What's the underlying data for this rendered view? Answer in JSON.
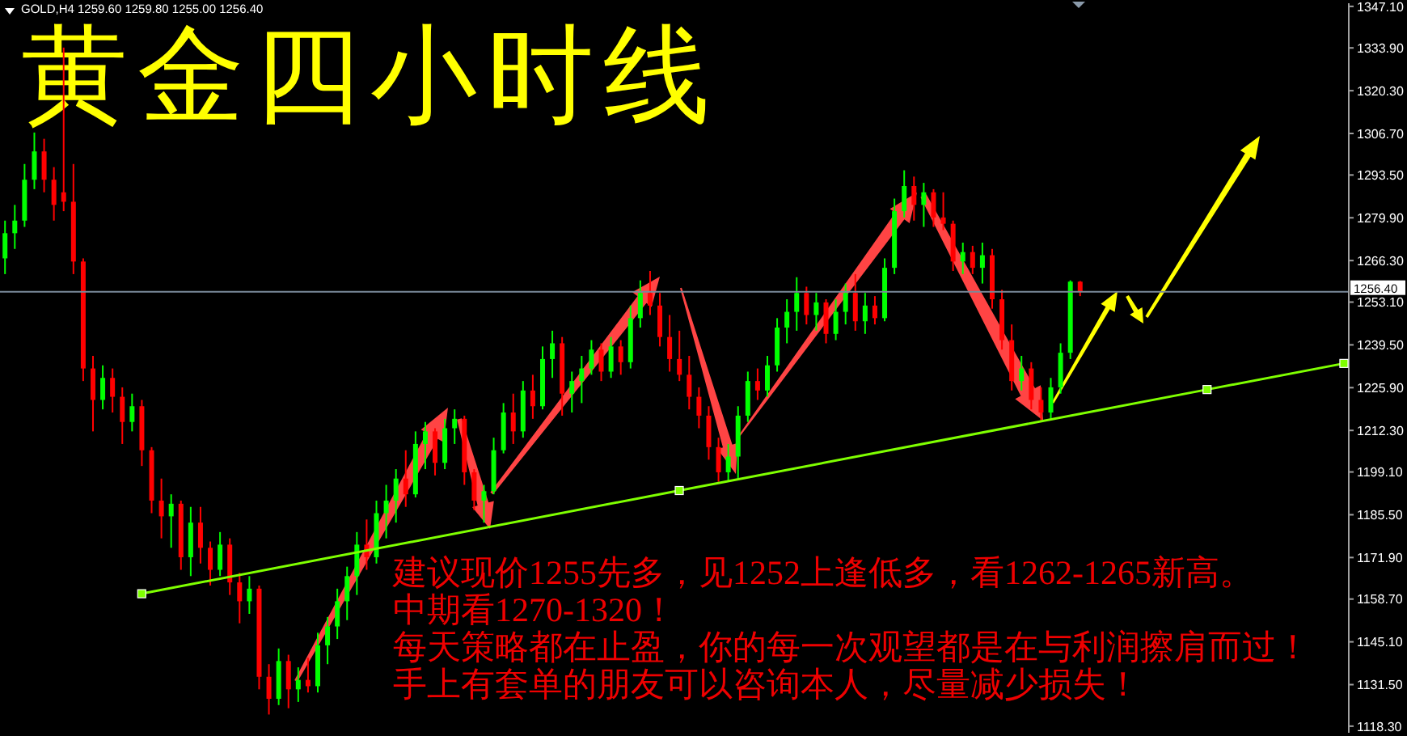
{
  "chart_data": {
    "type": "candlestick",
    "title": "黄金四小时线",
    "subtitle": "GOLD,H4 1259.60 1259.80 1255.00 1256.40",
    "annotations": [
      "建议现价1255先多，见1252上逢低多，看1262-1265新高。",
      "中期看1270-1320！",
      "每天策略都在止盈，你的每一次观望都是在与利润擦肩而过！",
      "手上有套单的朋友可以咨询本人，尽量减少损失！"
    ],
    "categories": [
      null,
      null,
      null,
      null,
      null,
      null,
      null,
      null,
      null,
      null,
      null,
      null,
      null,
      null,
      null,
      null,
      null,
      null,
      null,
      null,
      null,
      null,
      null,
      null,
      null,
      null,
      null,
      null,
      null,
      null,
      null,
      null,
      null,
      null,
      null,
      null,
      null,
      null,
      null,
      null,
      null,
      null,
      null,
      null,
      null,
      null,
      null,
      null,
      null,
      null,
      null,
      null,
      null,
      null,
      null,
      null,
      null,
      null,
      null,
      null,
      null,
      null,
      null,
      null,
      null,
      null,
      null,
      null,
      null,
      null,
      null,
      null,
      null,
      null,
      null,
      null,
      null,
      null,
      null,
      null,
      null,
      null,
      null,
      null,
      null,
      null,
      null,
      null,
      null,
      null,
      null,
      null,
      null,
      null,
      null,
      null,
      null,
      null,
      null,
      null,
      null,
      null,
      null,
      null,
      null,
      null,
      null,
      null,
      null,
      null,
      null,
      null,
      null,
      null,
      null,
      null,
      null,
      null,
      null,
      null,
      null,
      null,
      null,
      null,
      null,
      null,
      null,
      null,
      null,
      null,
      null,
      null,
      null,
      null,
      null,
      null,
      null,
      null
    ],
    "ohlc": [
      [
        1267,
        1279,
        1262,
        1275
      ],
      [
        1275,
        1284,
        1270,
        1279
      ],
      [
        1279,
        1297,
        1277,
        1292
      ],
      [
        1292,
        1307,
        1289,
        1301
      ],
      [
        1301,
        1305,
        1288,
        1292
      ],
      [
        1292,
        1296,
        1279,
        1284
      ],
      [
        1288,
        1334,
        1282,
        1285
      ],
      [
        1285,
        1297,
        1262,
        1266
      ],
      [
        1266,
        1267,
        1228,
        1232
      ],
      [
        1232,
        1236,
        1212,
        1222
      ],
      [
        1222,
        1233,
        1219,
        1229
      ],
      [
        1229,
        1232,
        1218,
        1223
      ],
      [
        1223,
        1226,
        1208,
        1215
      ],
      [
        1215,
        1224,
        1212,
        1220
      ],
      [
        1220,
        1222,
        1201,
        1206
      ],
      [
        1206,
        1207,
        1186,
        1190
      ],
      [
        1190,
        1197,
        1178,
        1185
      ],
      [
        1185,
        1192,
        1175,
        1189
      ],
      [
        1189,
        1190,
        1168,
        1172
      ],
      [
        1172,
        1188,
        1166,
        1183
      ],
      [
        1183,
        1188,
        1170,
        1175
      ],
      [
        1175,
        1177,
        1163,
        1168
      ],
      [
        1168,
        1180,
        1166,
        1176
      ],
      [
        1176,
        1178,
        1160,
        1164
      ],
      [
        1164,
        1167,
        1151,
        1158
      ],
      [
        1158,
        1166,
        1154,
        1162
      ],
      [
        1162,
        1163,
        1130,
        1134
      ],
      [
        1134,
        1138,
        1122,
        1127
      ],
      [
        1127,
        1143,
        1125,
        1139
      ],
      [
        1139,
        1141,
        1124,
        1130
      ],
      [
        1130,
        1137,
        1126,
        1133
      ],
      [
        1133,
        1140,
        1129,
        1131
      ],
      [
        1131,
        1148,
        1129,
        1144
      ],
      [
        1144,
        1153,
        1138,
        1150
      ],
      [
        1150,
        1162,
        1146,
        1158
      ],
      [
        1158,
        1169,
        1152,
        1166
      ],
      [
        1166,
        1180,
        1160,
        1176
      ],
      [
        1176,
        1184,
        1168,
        1172
      ],
      [
        1172,
        1190,
        1170,
        1186
      ],
      [
        1186,
        1195,
        1178,
        1190
      ],
      [
        1190,
        1200,
        1183,
        1197
      ],
      [
        1197,
        1206,
        1188,
        1192
      ],
      [
        1192,
        1212,
        1191,
        1208
      ],
      [
        1208,
        1215,
        1200,
        1212
      ],
      [
        1212,
        1213,
        1198,
        1202
      ],
      [
        1202,
        1216,
        1200,
        1213
      ],
      [
        1213,
        1219,
        1208,
        1216
      ],
      [
        1216,
        1217,
        1195,
        1199
      ],
      [
        1199,
        1200,
        1187,
        1190
      ],
      [
        1190,
        1195,
        1183,
        1193
      ],
      [
        1193,
        1210,
        1192,
        1206
      ],
      [
        1206,
        1221,
        1205,
        1218
      ],
      [
        1218,
        1224,
        1208,
        1212
      ],
      [
        1212,
        1228,
        1210,
        1225
      ],
      [
        1225,
        1230,
        1216,
        1220
      ],
      [
        1220,
        1239,
        1219,
        1235
      ],
      [
        1235,
        1244,
        1229,
        1240
      ],
      [
        1240,
        1242,
        1217,
        1224
      ],
      [
        1224,
        1231,
        1218,
        1228
      ],
      [
        1228,
        1236,
        1221,
        1232
      ],
      [
        1232,
        1241,
        1230,
        1238
      ],
      [
        1238,
        1240,
        1228,
        1231
      ],
      [
        1231,
        1242,
        1229,
        1239
      ],
      [
        1239,
        1241,
        1230,
        1234
      ],
      [
        1234,
        1252,
        1232,
        1248
      ],
      [
        1248,
        1260,
        1245,
        1256
      ],
      [
        1256,
        1263,
        1249,
        1252
      ],
      [
        1252,
        1256,
        1239,
        1242
      ],
      [
        1242,
        1249,
        1231,
        1235
      ],
      [
        1235,
        1244,
        1228,
        1230
      ],
      [
        1230,
        1236,
        1219,
        1223
      ],
      [
        1223,
        1226,
        1213,
        1217
      ],
      [
        1217,
        1220,
        1203,
        1207
      ],
      [
        1207,
        1210,
        1196,
        1199
      ],
      [
        1199,
        1208,
        1196,
        1204
      ],
      [
        1204,
        1220,
        1197,
        1217
      ],
      [
        1217,
        1231,
        1215,
        1228
      ],
      [
        1228,
        1232,
        1222,
        1225
      ],
      [
        1225,
        1236,
        1223,
        1233
      ],
      [
        1233,
        1248,
        1231,
        1245
      ],
      [
        1245,
        1254,
        1240,
        1250
      ],
      [
        1250,
        1261,
        1244,
        1256
      ],
      [
        1256,
        1258,
        1246,
        1249
      ],
      [
        1249,
        1256,
        1244,
        1253
      ],
      [
        1253,
        1254,
        1240,
        1243
      ],
      [
        1243,
        1254,
        1241,
        1250
      ],
      [
        1250,
        1259,
        1246,
        1256
      ],
      [
        1256,
        1262,
        1244,
        1247
      ],
      [
        1247,
        1256,
        1243,
        1252
      ],
      [
        1252,
        1255,
        1246,
        1248
      ],
      [
        1248,
        1267,
        1247,
        1264
      ],
      [
        1264,
        1286,
        1262,
        1282
      ],
      [
        1282,
        1295,
        1280,
        1290
      ],
      [
        1290,
        1293,
        1279,
        1284
      ],
      [
        1284,
        1291,
        1277,
        1288
      ],
      [
        1288,
        1289,
        1277,
        1280
      ],
      [
        1280,
        1288,
        1276,
        1278
      ],
      [
        1278,
        1279,
        1263,
        1266
      ],
      [
        1266,
        1272,
        1262,
        1269
      ],
      [
        1269,
        1271,
        1262,
        1264
      ],
      [
        1264,
        1272,
        1259,
        1268
      ],
      [
        1268,
        1270,
        1251,
        1254
      ],
      [
        1254,
        1257,
        1238,
        1241
      ],
      [
        1241,
        1246,
        1225,
        1228
      ],
      [
        1228,
        1236,
        1225,
        1232
      ],
      [
        1232,
        1234,
        1219,
        1222
      ],
      [
        1222,
        1226,
        1215,
        1218
      ],
      [
        1218,
        1229,
        1216,
        1226
      ],
      [
        1226,
        1240,
        1224,
        1237
      ],
      [
        1237,
        1260,
        1235,
        1259.6
      ],
      [
        1259.6,
        1259.8,
        1255.0,
        1256.4
      ],
      null,
      null,
      null,
      null,
      null,
      null,
      null,
      null,
      null,
      null,
      null,
      null,
      null,
      null,
      null,
      null,
      null,
      null,
      null,
      null,
      null,
      null,
      null,
      null,
      null,
      null,
      null
    ],
    "colors": [
      "#00ff00",
      "#00ff00",
      "#00ff00",
      "#00ff00",
      "#ff0000",
      "#ff0000",
      "#ff0000",
      "#ff0000",
      "#ff0000",
      "#ff0000",
      "#00ff00",
      "#ff0000",
      "#ff0000",
      "#00ff00",
      "#ff0000",
      "#ff0000",
      "#ff0000",
      "#00ff00",
      "#ff0000",
      "#00ff00",
      "#ff0000",
      "#ff0000",
      "#00ff00",
      "#ff0000",
      "#ff0000",
      "#00ff00",
      "#ff0000",
      "#ff0000",
      "#00ff00",
      "#ff0000",
      "#00ff00",
      "#ff0000",
      "#00ff00",
      "#00ff00",
      "#00ff00",
      "#00ff00",
      "#00ff00",
      "#ff0000",
      "#00ff00",
      "#00ff00",
      "#00ff00",
      "#ff0000",
      "#00ff00",
      "#00ff00",
      "#ff0000",
      "#00ff00",
      "#00ff00",
      "#ff0000",
      "#ff0000",
      "#00ff00",
      "#00ff00",
      "#00ff00",
      "#ff0000",
      "#00ff00",
      "#ff0000",
      "#00ff00",
      "#00ff00",
      "#ff0000",
      "#00ff00",
      "#00ff00",
      "#00ff00",
      "#ff0000",
      "#00ff00",
      "#ff0000",
      "#00ff00",
      "#00ff00",
      "#ff0000",
      "#ff0000",
      "#ff0000",
      "#ff0000",
      "#ff0000",
      "#ff0000",
      "#ff0000",
      "#ff0000",
      "#00ff00",
      "#00ff00",
      "#00ff00",
      "#ff0000",
      "#00ff00",
      "#00ff00",
      "#00ff00",
      "#00ff00",
      "#ff0000",
      "#00ff00",
      "#ff0000",
      "#00ff00",
      "#00ff00",
      "#ff0000",
      "#00ff00",
      "#ff0000",
      "#00ff00",
      "#00ff00",
      "#00ff00",
      "#ff0000",
      "#00ff00",
      "#ff0000",
      "#ff0000",
      "#ff0000",
      "#00ff00",
      "#ff0000",
      "#00ff00",
      "#ff0000",
      "#ff0000",
      "#ff0000",
      "#00ff00",
      "#ff0000",
      "#ff0000",
      "#00ff00",
      "#00ff00",
      "#00ff00",
      "#ff0000",
      null,
      null,
      null,
      null,
      null,
      null,
      null,
      null,
      null,
      null,
      null,
      null,
      null,
      null,
      null,
      null,
      null,
      null,
      null,
      null,
      null,
      null,
      null,
      null,
      null,
      null,
      null
    ],
    "series": [
      {
        "type": "line",
        "color": "#7fff00",
        "marker": "square",
        "values": [
          null,
          null,
          null,
          null,
          null,
          null,
          null,
          null,
          null,
          null,
          null,
          null,
          null,
          null,
          1160.4,
          null,
          null,
          null,
          null,
          null,
          null,
          null,
          null,
          null,
          null,
          null,
          null,
          null,
          null,
          null,
          null,
          null,
          null,
          null,
          null,
          null,
          null,
          null,
          null,
          null,
          null,
          null,
          null,
          null,
          null,
          null,
          null,
          null,
          null,
          null,
          null,
          null,
          null,
          null,
          null,
          null,
          null,
          null,
          null,
          null,
          null,
          null,
          null,
          null,
          null,
          null,
          null,
          null,
          null,
          1193.2,
          null,
          null,
          null,
          null,
          null,
          null,
          null,
          null,
          null,
          null,
          null,
          null,
          null,
          null,
          null,
          null,
          null,
          null,
          null,
          null,
          null,
          null,
          null,
          null,
          null,
          null,
          null,
          null,
          null,
          null,
          null,
          null,
          null,
          null,
          null,
          null,
          null,
          null,
          null,
          null,
          null,
          null,
          null,
          null,
          null,
          null,
          null,
          null,
          null,
          null,
          null,
          null,
          null,
          1225.3,
          null,
          null,
          null,
          null,
          null,
          null,
          null,
          null,
          null,
          null,
          null,
          null,
          null,
          1233.6
        ]
      }
    ],
    "ylim": [
      1116.2,
      1348.1
    ],
    "yticks": [
      {
        "value": 1347.1,
        "label": "1347.10"
      },
      {
        "value": 1333.9,
        "label": "1333.90"
      },
      {
        "value": 1320.3,
        "label": "1320.30"
      },
      {
        "value": 1306.7,
        "label": "1306.70"
      },
      {
        "value": 1293.5,
        "label": "1293.50"
      },
      {
        "value": 1279.9,
        "label": "1279.90"
      },
      {
        "value": 1266.3,
        "label": "1266.30"
      },
      {
        "value": 1253.1,
        "label": "1253.10"
      },
      {
        "value": 1239.5,
        "label": "1239.50"
      },
      {
        "value": 1225.9,
        "label": "1225.90"
      },
      {
        "value": 1212.3,
        "label": "1212.30"
      },
      {
        "value": 1199.1,
        "label": "1199.10"
      },
      {
        "value": 1185.5,
        "label": "1185.50"
      },
      {
        "value": 1171.9,
        "label": "1171.90"
      },
      {
        "value": 1158.7,
        "label": "1158.70"
      },
      {
        "value": 1145.1,
        "label": "1145.10"
      },
      {
        "value": 1131.5,
        "label": "1131.50"
      },
      {
        "value": 1118.3,
        "label": "1118.30"
      }
    ],
    "ref_lines": [
      {
        "axis": "y",
        "value": 1256.4,
        "label": "1256.40",
        "color": "#7a8a9a"
      }
    ],
    "tick_labels": "y"
  }
}
